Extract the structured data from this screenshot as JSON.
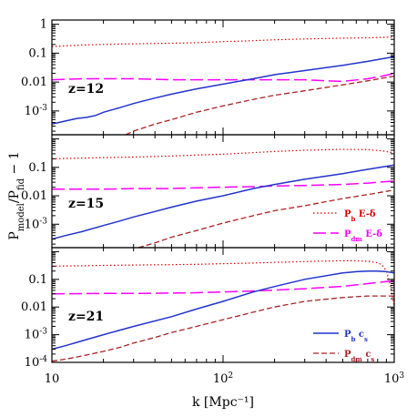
{
  "chart_data": {
    "type": "line",
    "xlabel": "k  [Mpc⁻¹]",
    "ylabel": "Pₘₒₓₑₗ/Pfᴵₗᵈ− 1",
    "ylabel_main": "P",
    "ylabel_sub1": "model",
    "ylabel_mid": "/P",
    "ylabel_sub2": "fid",
    "ylabel_tail": " − 1",
    "xscale": "log",
    "yscale": "log",
    "xlim": [
      10,
      1000
    ],
    "xticks": [
      {
        "v": 10,
        "label": "10"
      },
      {
        "v": 100,
        "label": "10",
        "sup": "2"
      },
      {
        "v": 1000,
        "label": "10",
        "sup": "3"
      }
    ],
    "colors": {
      "Pb_E": "#dd0000",
      "Pdm_E": "#ff00ff",
      "Pb_cs": "#2233cc",
      "Pdm_cs": "#aa2222"
    },
    "panels": [
      {
        "label": "z=12",
        "ylim": [
          0.00015,
          1.4
        ],
        "yticks": [
          {
            "v": 1,
            "label": "1"
          },
          {
            "v": 0.1,
            "label": "0.1"
          },
          {
            "v": 0.01,
            "label": "0.01"
          },
          {
            "v": 0.001,
            "label": "10",
            "sup": "-3"
          }
        ],
        "series": [
          {
            "key": "Pb_E",
            "x": [
              10,
              15,
              20,
              30,
              50,
              70,
              100,
              150,
              200,
              300,
              500,
              700,
              1000
            ],
            "y": [
              0.17,
              0.19,
              0.2,
              0.21,
              0.22,
              0.23,
              0.25,
              0.27,
              0.29,
              0.31,
              0.33,
              0.34,
              0.36
            ]
          },
          {
            "key": "Pdm_E",
            "x": [
              10,
              15,
              20,
              30,
              50,
              70,
              100,
              150,
              200,
              300,
              400,
              500,
              700,
              850,
              1000
            ],
            "y": [
              0.012,
              0.013,
              0.013,
              0.013,
              0.012,
              0.012,
              0.012,
              0.012,
              0.012,
              0.012,
              0.011,
              0.0105,
              0.013,
              0.016,
              0.02
            ]
          },
          {
            "key": "Pb_cs",
            "x": [
              10,
              12,
              14,
              16,
              18,
              20,
              25,
              30,
              40,
              50,
              70,
              100,
              150,
              200,
              300,
              500,
              700,
              1000
            ],
            "y": [
              0.00035,
              0.00045,
              0.00055,
              0.0006,
              0.0007,
              0.0009,
              0.0013,
              0.0018,
              0.0028,
              0.0038,
              0.0058,
              0.0085,
              0.013,
              0.018,
              0.025,
              0.038,
              0.052,
              0.075
            ]
          },
          {
            "key": "Pdm_cs",
            "x": [
              27,
              30,
              40,
              50,
              70,
              100,
              150,
              200,
              300,
              500,
              700,
              1000
            ],
            "y": [
              0.00015,
              0.0002,
              0.00035,
              0.0005,
              0.0009,
              0.0015,
              0.0025,
              0.0035,
              0.005,
              0.008,
              0.011,
              0.016
            ]
          }
        ]
      },
      {
        "label": "z=15",
        "ylim": [
          0.00015,
          1.4
        ],
        "yticks": [
          {
            "v": 0.1,
            "label": "0.1"
          },
          {
            "v": 0.01,
            "label": "0.01"
          },
          {
            "v": 0.001,
            "label": "10",
            "sup": "-3"
          }
        ],
        "legend": [
          {
            "key": "Pb_E",
            "sym": "P",
            "sub": "b",
            "tail": " E-δ"
          },
          {
            "key": "Pdm_E",
            "sym": "P",
            "sub": "dm",
            "tail": " E-δ"
          }
        ],
        "series": [
          {
            "key": "Pb_E",
            "x": [
              10,
              15,
              20,
              30,
              50,
              70,
              100,
              150,
              200,
              300,
              500,
              700,
              850,
              1000
            ],
            "y": [
              0.2,
              0.21,
              0.22,
              0.23,
              0.25,
              0.27,
              0.29,
              0.33,
              0.36,
              0.4,
              0.43,
              0.42,
              0.38,
              0.32
            ]
          },
          {
            "key": "Pdm_E",
            "x": [
              10,
              20,
              30,
              50,
              70,
              100,
              150,
              200,
              300,
              500,
              700,
              1000
            ],
            "y": [
              0.017,
              0.017,
              0.018,
              0.018,
              0.019,
              0.02,
              0.021,
              0.022,
              0.023,
              0.025,
              0.028,
              0.033
            ]
          },
          {
            "key": "Pb_cs",
            "x": [
              10,
              12,
              15,
              20,
              25,
              30,
              40,
              50,
              70,
              100,
              150,
              200,
              300,
              500,
              700,
              1000
            ],
            "y": [
              0.0003,
              0.0004,
              0.00055,
              0.0009,
              0.0013,
              0.0018,
              0.0028,
              0.004,
              0.0065,
              0.01,
              0.018,
              0.025,
              0.038,
              0.06,
              0.085,
              0.12
            ]
          },
          {
            "key": "Pdm_cs",
            "x": [
              32,
              40,
              50,
              70,
              100,
              150,
              200,
              300,
              500,
              700,
              1000
            ],
            "y": [
              0.00015,
              0.00022,
              0.00035,
              0.0006,
              0.0011,
              0.002,
              0.003,
              0.0045,
              0.008,
              0.011,
              0.016
            ]
          }
        ]
      },
      {
        "label": "z=21",
        "ylim": [
          0.0001,
          1.4
        ],
        "yticks": [
          {
            "v": 0.1,
            "label": "0.1"
          },
          {
            "v": 0.01,
            "label": "0.01"
          },
          {
            "v": 0.001,
            "label": "10",
            "sup": "-3"
          },
          {
            "v": 0.0001,
            "label": "10",
            "sup": "-4"
          }
        ],
        "legend": [
          {
            "key": "Pb_cs",
            "sym": "P",
            "sub": "b",
            "tail": " c",
            "tailsub": "s"
          },
          {
            "key": "Pdm_cs",
            "sym": "P",
            "sub": "dm",
            "tail": " c",
            "tailsub": "s"
          }
        ],
        "series": [
          {
            "key": "Pb_E",
            "x": [
              10,
              15,
              20,
              30,
              50,
              70,
              100,
              150,
              200,
              300,
              400,
              500,
              600,
              700,
              800,
              850,
              900,
              950,
              1000
            ],
            "y": [
              0.3,
              0.31,
              0.32,
              0.33,
              0.34,
              0.35,
              0.37,
              0.39,
              0.41,
              0.44,
              0.46,
              0.47,
              0.47,
              0.45,
              0.4,
              0.33,
              0.2,
              0.06,
              0.01
            ]
          },
          {
            "key": "Pdm_E",
            "x": [
              10,
              20,
              30,
              50,
              70,
              100,
              150,
              200,
              300,
              500,
              700,
              1000
            ],
            "y": [
              0.03,
              0.031,
              0.031,
              0.032,
              0.033,
              0.035,
              0.038,
              0.041,
              0.046,
              0.056,
              0.07,
              0.09
            ]
          },
          {
            "key": "Pb_cs",
            "x": [
              10,
              12,
              15,
              20,
              30,
              50,
              70,
              100,
              150,
              200,
              300,
              500,
              600,
              700,
              800,
              900,
              1000
            ],
            "y": [
              0.0003,
              0.0004,
              0.0006,
              0.001,
              0.002,
              0.0045,
              0.0085,
              0.016,
              0.035,
              0.055,
              0.1,
              0.17,
              0.19,
              0.2,
              0.2,
              0.19,
              0.17
            ]
          },
          {
            "key": "Pdm_cs",
            "x": [
              10,
              12,
              15,
              20,
              25,
              30,
              40,
              50,
              70,
              100,
              150,
              200,
              300,
              500,
              700,
              900,
              1000
            ],
            "y": [
              0.00011,
              0.00013,
              0.00017,
              0.00025,
              0.00035,
              0.0005,
              0.0008,
              0.0012,
              0.002,
              0.0035,
              0.0065,
              0.01,
              0.016,
              0.022,
              0.025,
              0.025,
              0.025
            ]
          }
        ]
      }
    ]
  }
}
